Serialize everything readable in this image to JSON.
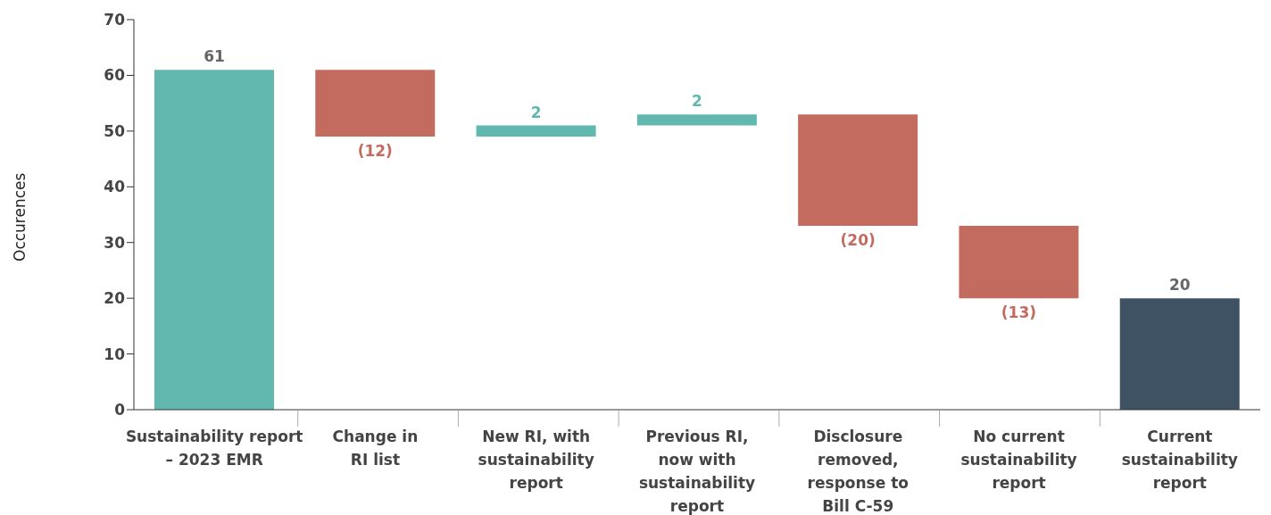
{
  "chart_data": {
    "type": "bar",
    "ylabel": "Occurences",
    "categories": [
      "Sustainability report\n– 2023 EMR",
      "Change in\nRI list",
      "New RI, with\nsustainability\nreport",
      "Previous RI,\nnow with\nsustainability\nreport",
      "Disclosure\nremoved,\nresponse to\nBill C-59",
      "No current\nsustainability\nreport",
      "Current\nsustainability\nreport"
    ],
    "values": [
      61,
      -12,
      2,
      2,
      -20,
      -13,
      20
    ],
    "base": [
      0,
      61,
      49,
      51,
      53,
      33,
      0
    ],
    "colors": [
      "#62b8ae",
      "#c46b60",
      "#62b8ae",
      "#62b8ae",
      "#c46b60",
      "#c46b60",
      "#3f5263"
    ],
    "value_labels": [
      "61",
      "(12)",
      "2",
      "2",
      "(20)",
      "(13)",
      "20"
    ],
    "ylim": [
      0,
      70
    ],
    "yticks": [
      0,
      10,
      20,
      30,
      40,
      50,
      60,
      70
    ],
    "grid": false,
    "legend": false
  }
}
